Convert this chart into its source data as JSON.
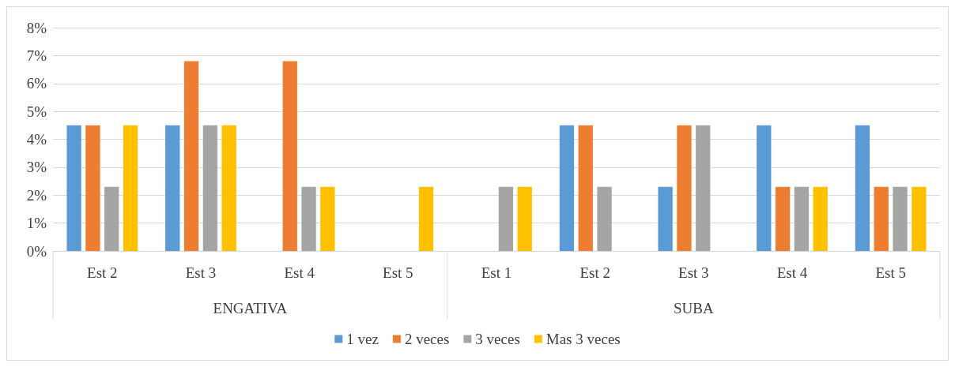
{
  "chart_data": {
    "type": "bar",
    "categories": [
      "Est 2",
      "Est 3",
      "Est 4",
      "Est 5",
      "Est 1",
      "Est 2",
      "Est 3",
      "Est 4",
      "Est 5"
    ],
    "annotations": [
      "ENGATIVA",
      "SUBA"
    ],
    "series": [
      {
        "name": "1 vez",
        "color": "#5b9bd5",
        "values": [
          4.5,
          4.5,
          0,
          0,
          0,
          4.5,
          2.3,
          4.5,
          4.5
        ]
      },
      {
        "name": "2 veces",
        "color": "#ed7d31",
        "values": [
          4.5,
          6.8,
          6.8,
          0,
          0,
          4.5,
          4.5,
          2.3,
          2.3
        ]
      },
      {
        "name": "3 veces",
        "color": "#a5a5a5",
        "values": [
          2.3,
          4.5,
          2.3,
          0,
          2.3,
          2.3,
          4.5,
          2.3,
          2.3
        ]
      },
      {
        "name": "Mas 3 veces",
        "color": "#ffc000",
        "values": [
          4.5,
          4.5,
          2.3,
          2.3,
          2.3,
          0,
          0,
          2.3,
          2.3
        ]
      }
    ],
    "ylim": [
      0,
      8
    ],
    "yticks": [
      {
        "value": 0,
        "label": "0%"
      },
      {
        "value": 1,
        "label": "1%"
      },
      {
        "value": 2,
        "label": "2%"
      },
      {
        "value": 3,
        "label": "3%"
      },
      {
        "value": 4,
        "label": "4%"
      },
      {
        "value": 5,
        "label": "5%"
      },
      {
        "value": 6,
        "label": "6%"
      },
      {
        "value": 7,
        "label": "7%"
      },
      {
        "value": 8,
        "label": "8%"
      }
    ],
    "grid": "y",
    "legend": "bottom"
  }
}
